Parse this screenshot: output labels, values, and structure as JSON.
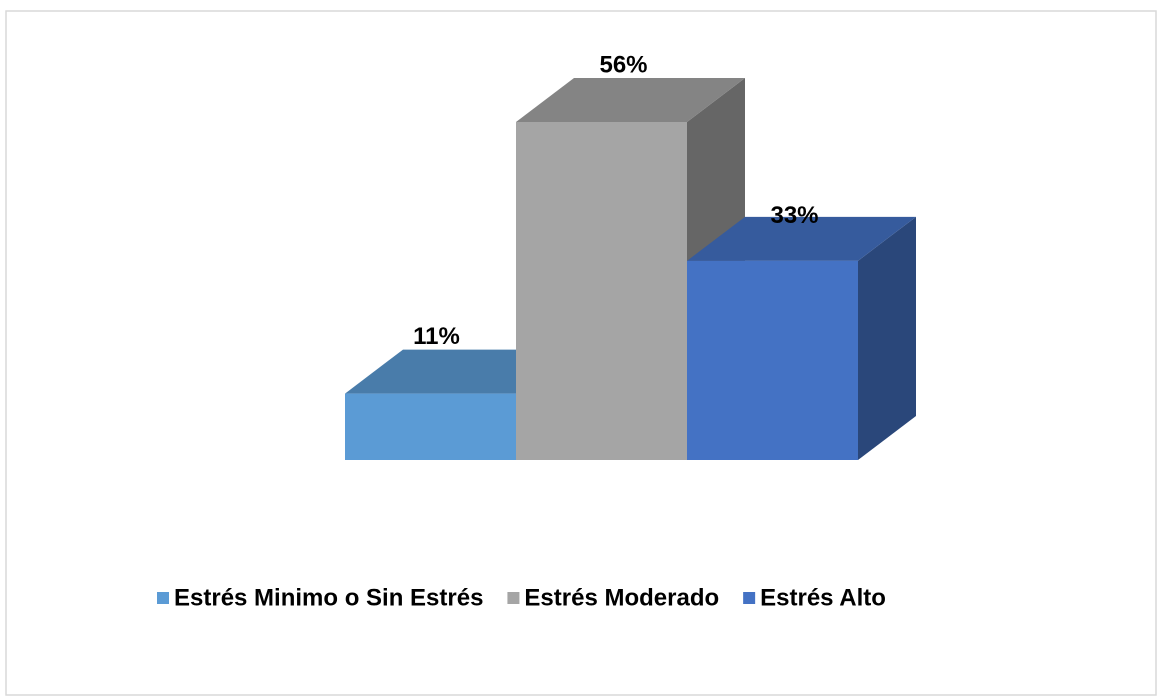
{
  "chart_data": {
    "type": "bar3d",
    "series": [
      {
        "name": "Estrés Minimo o Sin Estrés",
        "color": "#5b9bd5",
        "values": [
          11
        ],
        "value_labels": [
          "11%"
        ]
      },
      {
        "name": "Estrés Moderado",
        "color": "#a5a5a5",
        "values": [
          56
        ],
        "value_labels": [
          "56%"
        ]
      },
      {
        "name": "Estrés Alto",
        "color": "#4472c4",
        "values": [
          33
        ],
        "value_labels": [
          "33%"
        ]
      }
    ],
    "legend": "bottom"
  }
}
